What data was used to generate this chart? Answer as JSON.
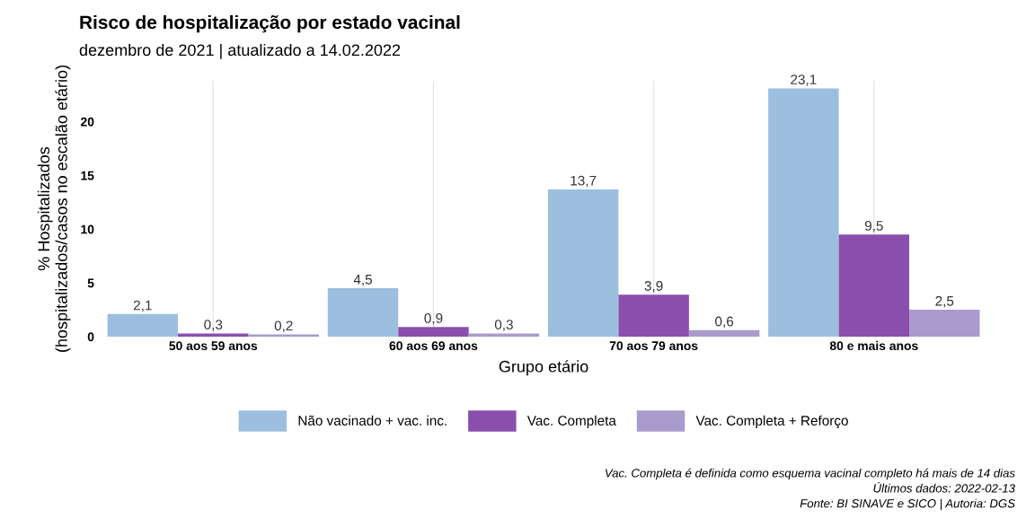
{
  "chart_data": {
    "type": "bar",
    "title": "Risco de hospitalização por estado vacinal",
    "subtitle": "dezembro de 2021 | atualizado a 14.02.2022",
    "xlabel": "Grupo etário",
    "ylabel": "% Hospitalizados\n(hospitalizados/casos no escalão etário)",
    "categories": [
      "50 aos 59 anos",
      "60 aos 69 anos",
      "70 aos 79 anos",
      "80 e mais anos"
    ],
    "series": [
      {
        "name": "Não vacinado + vac. inc.",
        "color": "#9dbfdf",
        "values": [
          2.1,
          4.5,
          13.7,
          23.1
        ],
        "value_labels": [
          "2,1",
          "4,5",
          "13,7",
          "23,1"
        ]
      },
      {
        "name": "Vac. Completa",
        "color": "#8a4fad",
        "values": [
          0.3,
          0.9,
          3.9,
          9.5
        ],
        "value_labels": [
          "0,3",
          "0,9",
          "3,9",
          "9,5"
        ]
      },
      {
        "name": "Vac. Completa + Reforço",
        "color": "#a99bcc",
        "values": [
          0.2,
          0.3,
          0.6,
          2.5
        ],
        "value_labels": [
          "0,2",
          "0,3",
          "0,6",
          "2,5"
        ]
      }
    ],
    "ylim": [
      0,
      23.8
    ],
    "yticks": [
      0,
      5,
      10,
      15,
      20
    ],
    "grid": "x",
    "legend": "bottom",
    "annotations": [
      "Vac. Completa é definida como esquema vacinal completo há mais de 14 dias",
      "Últimos dados: 2022-02-13",
      "Fonte: BI SINAVE e SICO | Autoria: DGS"
    ]
  }
}
